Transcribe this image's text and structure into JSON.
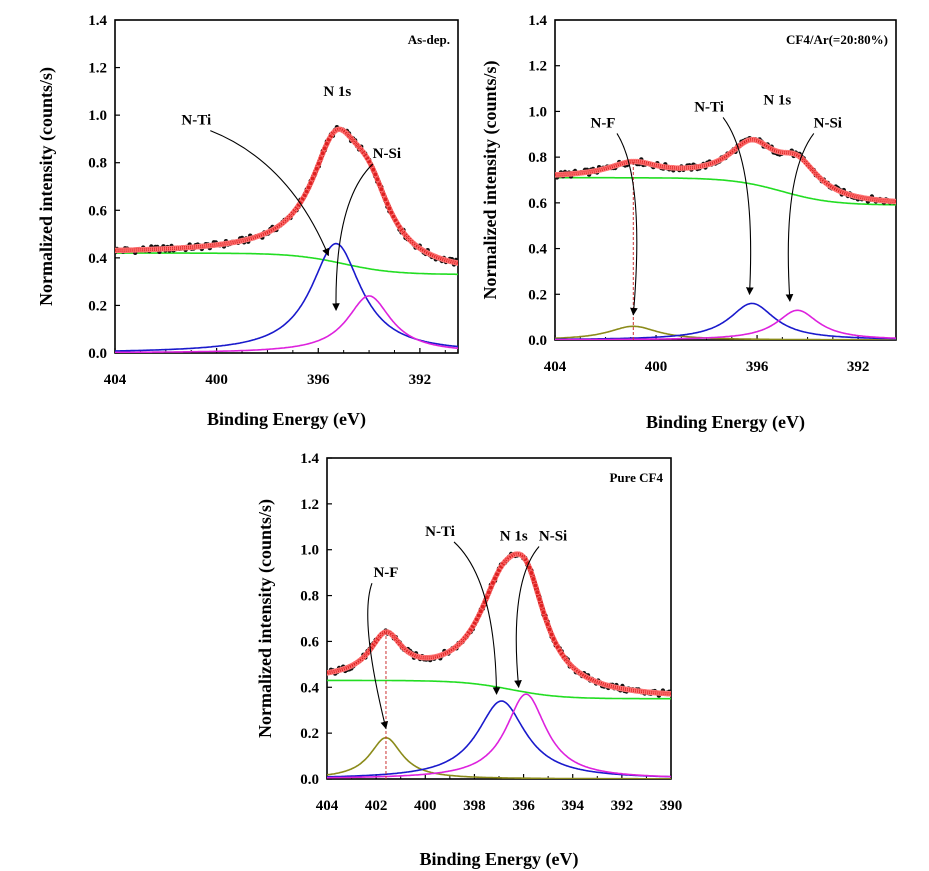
{
  "chart_data": [
    {
      "type": "line",
      "title": "As-dep.",
      "xlabel": "Binding Energy (eV)",
      "ylabel": "Normalized intensity (counts/s)",
      "xlim": [
        404,
        390.5
      ],
      "ylim": [
        0,
        1.4
      ],
      "xticks": [
        404,
        400,
        396,
        392
      ],
      "yticks": [
        0.0,
        0.2,
        0.4,
        0.6,
        0.8,
        1.0,
        1.2,
        1.4
      ],
      "peaks": [
        {
          "name": "N-Ti",
          "center": 395.3,
          "height": 0.46,
          "width": 1.2,
          "color": "#1a1acc"
        },
        {
          "name": "N-Si",
          "center": 394.0,
          "height": 0.24,
          "width": 1.05,
          "color": "#dd22dd"
        }
      ],
      "background": {
        "name": "Background",
        "start": 0.42,
        "end": 0.33,
        "midpoint": 395.0,
        "steepness": 1.0,
        "color": "#22dd22"
      },
      "envelope_color": "#dd2222",
      "envelope_label": "N 1s",
      "annotations": [
        {
          "text": "N 1s",
          "at": [
            395.25,
            1.08
          ]
        },
        {
          "text": "N-Ti",
          "at": [
            400.8,
            0.96
          ],
          "arrow_to": [
            395.6,
            0.41
          ]
        },
        {
          "text": "N-Si",
          "at": [
            393.3,
            0.82
          ],
          "arrow_to": [
            395.3,
            0.18
          ]
        }
      ]
    },
    {
      "type": "line",
      "title": "CF4/Ar(=20:80%)",
      "xlabel": "Binding Energy (eV)",
      "ylabel": "Normalized intensity (counts/s)",
      "xlim": [
        404,
        390.5
      ],
      "ylim": [
        0,
        1.4
      ],
      "xticks": [
        404,
        400,
        396,
        392
      ],
      "yticks": [
        0.0,
        0.2,
        0.4,
        0.6,
        0.8,
        1.0,
        1.2,
        1.4
      ],
      "peaks": [
        {
          "name": "N-F",
          "center": 400.9,
          "height": 0.06,
          "width": 1.2,
          "color": "#8b8b1a"
        },
        {
          "name": "N-Ti",
          "center": 396.2,
          "height": 0.16,
          "width": 1.1,
          "color": "#1a1acc"
        },
        {
          "name": "N-Si",
          "center": 394.4,
          "height": 0.13,
          "width": 1.0,
          "color": "#dd22dd"
        }
      ],
      "background": {
        "name": "Background",
        "start": 0.71,
        "end": 0.59,
        "midpoint": 395.0,
        "steepness": 1.0,
        "color": "#22dd22"
      },
      "envelope_color": "#dd2222",
      "envelope_label": "N 1s",
      "dashed_marker": 400.9,
      "annotations": [
        {
          "text": "N 1s",
          "at": [
            395.2,
            1.03
          ]
        },
        {
          "text": "N-F",
          "at": [
            402.1,
            0.93
          ],
          "arrow_to": [
            400.9,
            0.11
          ]
        },
        {
          "text": "N-Ti",
          "at": [
            397.9,
            1.0
          ],
          "arrow_to": [
            396.3,
            0.2
          ]
        },
        {
          "text": "N-Si",
          "at": [
            393.2,
            0.93
          ],
          "arrow_to": [
            394.7,
            0.17
          ]
        }
      ]
    },
    {
      "type": "line",
      "title": "Pure CF4",
      "xlabel": "Binding Energy (eV)",
      "ylabel": "Normalized intensity (counts/s)",
      "xlim": [
        404,
        390
      ],
      "ylim": [
        0,
        1.4
      ],
      "xticks": [
        404,
        402,
        400,
        398,
        396,
        394,
        392,
        390
      ],
      "yticks": [
        0.0,
        0.2,
        0.4,
        0.6,
        0.8,
        1.0,
        1.2,
        1.4
      ],
      "peaks": [
        {
          "name": "N-F",
          "center": 401.6,
          "height": 0.18,
          "width": 0.8,
          "color": "#8b8b1a"
        },
        {
          "name": "N-Ti",
          "center": 396.9,
          "height": 0.34,
          "width": 1.2,
          "color": "#1a1acc"
        },
        {
          "name": "N-Si",
          "center": 395.9,
          "height": 0.37,
          "width": 1.0,
          "color": "#dd22dd"
        }
      ],
      "background": {
        "name": "Background",
        "start": 0.43,
        "end": 0.35,
        "midpoint": 396.5,
        "steepness": 1.0,
        "color": "#22dd22"
      },
      "envelope_color": "#dd2222",
      "envelope_label": "N 1s",
      "dashed_marker": 401.6,
      "annotations": [
        {
          "text": "N 1s",
          "at": [
            396.4,
            1.04
          ]
        },
        {
          "text": "N-F",
          "at": [
            401.6,
            0.88
          ],
          "arrow_to": [
            401.6,
            0.22
          ]
        },
        {
          "text": "N-Ti",
          "at": [
            399.4,
            1.06
          ],
          "arrow_to": [
            397.1,
            0.37
          ]
        },
        {
          "text": "N-Si",
          "at": [
            394.8,
            1.04
          ],
          "arrow_to": [
            396.2,
            0.4
          ]
        }
      ]
    }
  ]
}
